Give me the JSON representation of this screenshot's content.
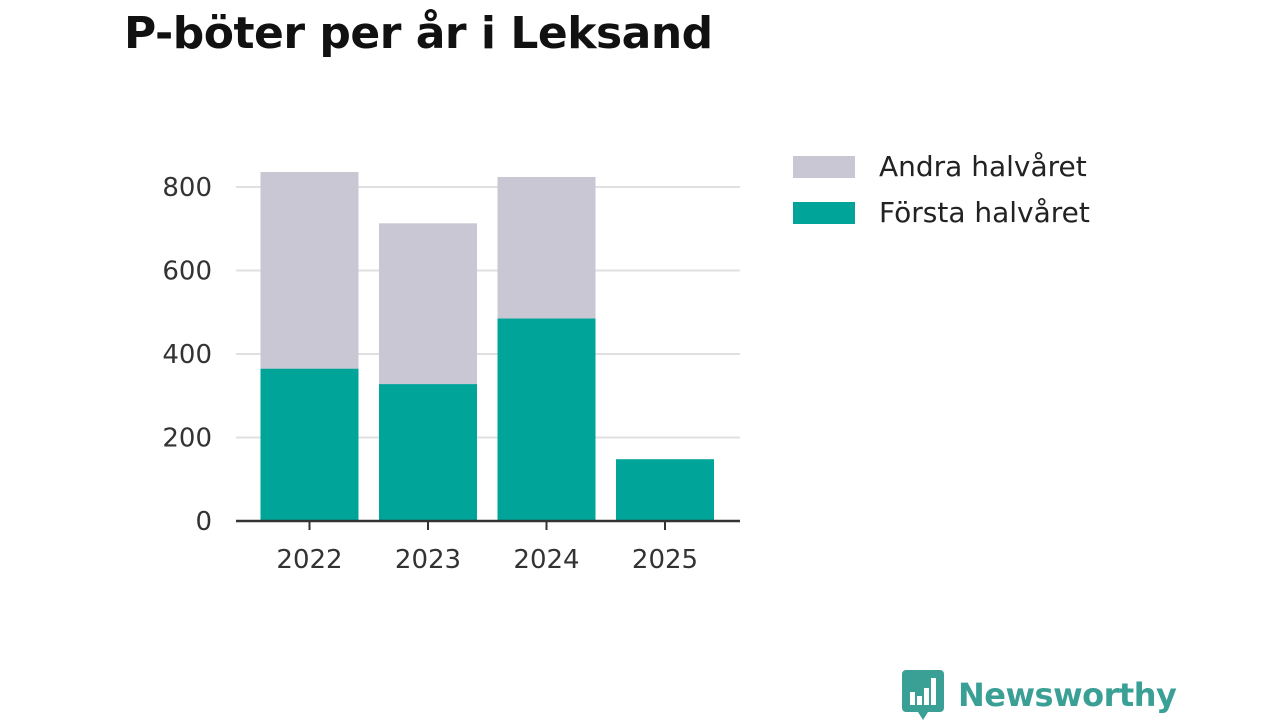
{
  "title": "P-böter per år i Leksand",
  "chart_data": {
    "type": "bar",
    "stacked": true,
    "title": "P-böter per år i Leksand",
    "categories": [
      "2022",
      "2023",
      "2024",
      "2025"
    ],
    "series": [
      {
        "name": "Första halvåret",
        "color": "#00a499",
        "values": [
          365,
          328,
          485,
          148
        ]
      },
      {
        "name": "Andra halvåret",
        "color": "#c8c7d3",
        "values": [
          471,
          385,
          339,
          0
        ]
      }
    ],
    "yticks": [
      0,
      200,
      400,
      600,
      800
    ],
    "ylim": [
      0,
      860
    ],
    "xlabel": "",
    "ylabel": "",
    "grid": true,
    "legend_position": "right",
    "legend_order": [
      "Andra halvåret",
      "Första halvåret"
    ]
  },
  "brand": {
    "name": "Newsworthy",
    "color": "#3a9f95",
    "logo_icon": "newsworthy-bar-chart-icon"
  }
}
